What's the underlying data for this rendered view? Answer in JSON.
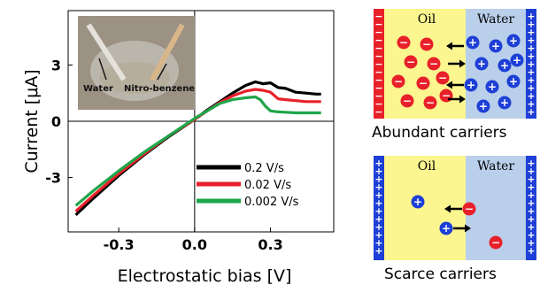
{
  "chart_data": {
    "type": "line",
    "xlabel": "Electrostatic bias [V]",
    "ylabel": "Current [μA]",
    "xlim": [
      -0.5,
      0.55
    ],
    "ylim": [
      -5.9,
      5.9
    ],
    "x_ticks": [
      -0.3,
      0.0,
      0.3
    ],
    "x_tick_labels": [
      "-0.3",
      "0.0",
      "0.3"
    ],
    "y_ticks": [
      3,
      0,
      -3
    ],
    "y_tick_labels": [
      "3",
      "0",
      "-3"
    ],
    "legend_position": "bottom-right",
    "inset_photo_labels": [
      "Water",
      "Nitro-benzene"
    ],
    "series": [
      {
        "name": "0.2  V/s",
        "color": "#000000",
        "x": [
          -0.47,
          -0.4,
          -0.3,
          -0.2,
          -0.1,
          0.0,
          0.05,
          0.1,
          0.15,
          0.2,
          0.24,
          0.27,
          0.3,
          0.33,
          0.36,
          0.4,
          0.44,
          0.48,
          0.5
        ],
        "y": [
          -5.0,
          -4.1,
          -2.9,
          -1.8,
          -0.8,
          0.1,
          0.6,
          1.05,
          1.5,
          1.9,
          2.1,
          2.0,
          2.05,
          1.8,
          1.75,
          1.55,
          1.5,
          1.45,
          1.45
        ]
      },
      {
        "name": "0.02  V/s",
        "color": "#e8202a",
        "x": [
          -0.47,
          -0.4,
          -0.3,
          -0.2,
          -0.1,
          0.0,
          0.05,
          0.1,
          0.15,
          0.2,
          0.24,
          0.27,
          0.3,
          0.33,
          0.36,
          0.4,
          0.44,
          0.48,
          0.5
        ],
        "y": [
          -4.8,
          -3.95,
          -2.8,
          -1.75,
          -0.75,
          0.1,
          0.55,
          1.0,
          1.35,
          1.6,
          1.7,
          1.65,
          1.55,
          1.2,
          1.15,
          1.1,
          1.05,
          1.05,
          1.05
        ]
      },
      {
        "name": "0.002  V/s",
        "color": "#1ea64a",
        "x": [
          -0.47,
          -0.4,
          -0.3,
          -0.2,
          -0.1,
          0.0,
          0.05,
          0.1,
          0.15,
          0.2,
          0.24,
          0.26,
          0.28,
          0.3,
          0.33,
          0.36,
          0.4,
          0.44,
          0.48,
          0.5
        ],
        "y": [
          -4.5,
          -3.7,
          -2.65,
          -1.65,
          -0.75,
          0.15,
          0.55,
          0.95,
          1.15,
          1.25,
          1.3,
          1.15,
          0.8,
          0.55,
          0.5,
          0.48,
          0.45,
          0.45,
          0.45,
          0.45
        ]
      }
    ]
  },
  "diagram_top": {
    "oil_label": "Oil",
    "water_label": "Water",
    "caption": "Abundant carriers",
    "neg_sign": "−",
    "pos_sign": "+",
    "wall_left_signs": "−",
    "wall_right_signs": "+"
  },
  "diagram_bottom": {
    "oil_label": "Oil",
    "water_label": "Water",
    "caption": "Scarce carriers",
    "neg_sign": "−",
    "pos_sign": "+",
    "wall_left_signs": "+",
    "wall_right_signs": "+"
  },
  "colors": {
    "oil": "#fbf68f",
    "water": "#b9cfea",
    "anion": "#e8202a",
    "cation": "#1d3fd6",
    "wall_red": "#e8202a",
    "wall_blue": "#1d3fd6"
  }
}
